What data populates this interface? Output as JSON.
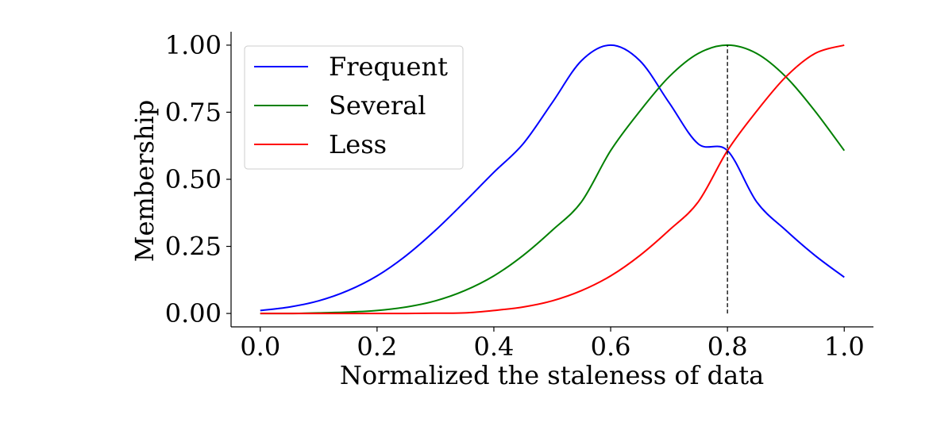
{
  "chart_data": {
    "type": "line",
    "title": "",
    "xlabel": "Normalized the staleness of data",
    "ylabel": "Membership",
    "xlim": [
      -0.05,
      1.05
    ],
    "ylim": [
      -0.05,
      1.05
    ],
    "x_ticks": [
      0.0,
      0.2,
      0.4,
      0.6,
      0.8,
      1.0
    ],
    "x_tick_labels": [
      "0.0",
      "0.2",
      "0.4",
      "0.6",
      "0.8",
      "1.0"
    ],
    "y_ticks": [
      0.0,
      0.25,
      0.5,
      0.75,
      1.0
    ],
    "y_tick_labels": [
      "0.00",
      "0.25",
      "0.50",
      "0.75",
      "1.00"
    ],
    "grid": false,
    "legend_position": "top-left",
    "series": [
      {
        "name": "Frequent",
        "color": "#0000ff",
        "x": [
          0.0,
          0.05,
          0.1,
          0.15,
          0.2,
          0.25,
          0.3,
          0.35,
          0.4,
          0.45,
          0.5,
          0.55,
          0.6,
          0.65,
          0.7,
          0.75,
          0.8,
          0.85,
          0.9,
          0.95,
          1.0
        ],
        "y": [
          0.011,
          0.024,
          0.047,
          0.085,
          0.14,
          0.216,
          0.31,
          0.416,
          0.526,
          0.632,
          0.786,
          0.942,
          1.0,
          0.942,
          0.786,
          0.632,
          0.607,
          0.416,
          0.31,
          0.216,
          0.135
        ]
      },
      {
        "name": "Several",
        "color": "#008000",
        "x": [
          0.0,
          0.05,
          0.1,
          0.15,
          0.2,
          0.25,
          0.3,
          0.35,
          0.4,
          0.45,
          0.5,
          0.55,
          0.6,
          0.65,
          0.7,
          0.75,
          0.8,
          0.85,
          0.9,
          0.95,
          1.0
        ],
        "y": [
          0.0,
          0.0,
          0.002,
          0.005,
          0.011,
          0.024,
          0.047,
          0.085,
          0.14,
          0.216,
          0.31,
          0.416,
          0.607,
          0.754,
          0.882,
          0.969,
          1.0,
          0.969,
          0.882,
          0.754,
          0.607
        ]
      },
      {
        "name": "Less",
        "color": "#ff0000",
        "x": [
          0.0,
          0.05,
          0.1,
          0.15,
          0.2,
          0.25,
          0.3,
          0.35,
          0.4,
          0.45,
          0.5,
          0.55,
          0.6,
          0.65,
          0.7,
          0.75,
          0.8,
          0.85,
          0.9,
          0.95,
          1.0
        ],
        "y": [
          0.0,
          0.0,
          0.0,
          0.0,
          0.0,
          0.0,
          0.001,
          0.002,
          0.011,
          0.024,
          0.047,
          0.085,
          0.14,
          0.216,
          0.31,
          0.416,
          0.607,
          0.754,
          0.882,
          0.969,
          1.0
        ]
      }
    ],
    "reference_line": {
      "x": 0.8,
      "y_from": 0.0,
      "y_to": 1.0,
      "style": "dashed",
      "color": "#000000"
    }
  }
}
